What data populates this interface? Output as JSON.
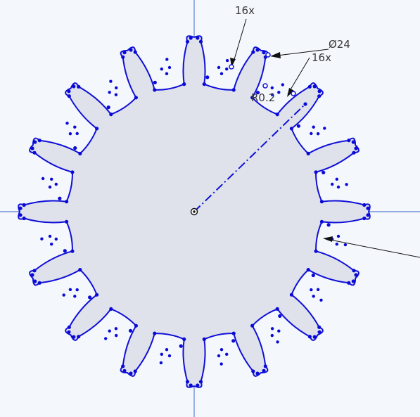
{
  "sketch": {
    "title": "",
    "axes_color": "#6f94d4",
    "profile_color": "#1010d8",
    "fill_color": "#dfe2ea",
    "point_color": "#0a0ad8",
    "tooth_count": 16,
    "dimensions": {
      "tooth_count_label_a": "16x",
      "diameter_label": "Ø24",
      "tooth_count_label_b": "16x",
      "radius_label": "R0.2"
    }
  }
}
